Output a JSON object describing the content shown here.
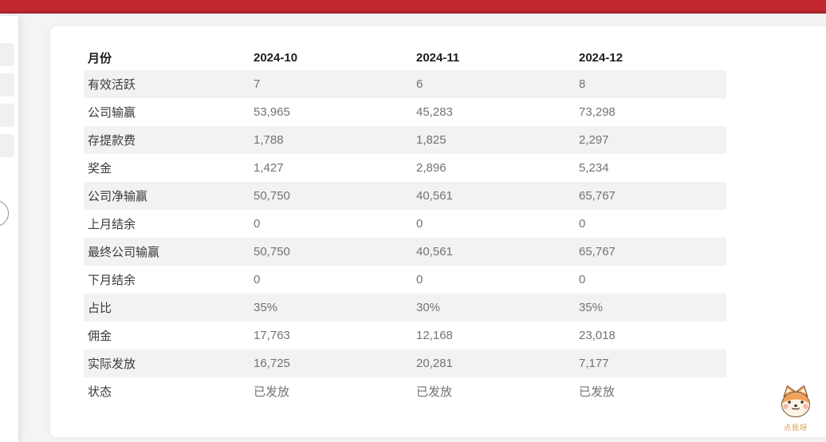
{
  "topbar": {
    "color": "#c2272f"
  },
  "sidebar": {
    "collapse_button": "toggle"
  },
  "table": {
    "header": {
      "label": "月份",
      "columns": [
        "2024-10",
        "2024-11",
        "2024-12"
      ]
    },
    "rows": [
      {
        "label": "有效活跃",
        "values": [
          "7",
          "6",
          "8"
        ]
      },
      {
        "label": "公司输赢",
        "values": [
          "53,965",
          "45,283",
          "73,298"
        ]
      },
      {
        "label": "存提款费",
        "values": [
          "1,788",
          "1,825",
          "2,297"
        ]
      },
      {
        "label": "奖金",
        "values": [
          "1,427",
          "2,896",
          "5,234"
        ]
      },
      {
        "label": "公司净输赢",
        "values": [
          "50,750",
          "40,561",
          "65,767"
        ]
      },
      {
        "label": "上月结余",
        "values": [
          "0",
          "0",
          "0"
        ]
      },
      {
        "label": "最终公司输赢",
        "values": [
          "50,750",
          "40,561",
          "65,767"
        ]
      },
      {
        "label": "下月结余",
        "values": [
          "0",
          "0",
          "0"
        ]
      },
      {
        "label": "占比",
        "values": [
          "35%",
          "30%",
          "35%"
        ]
      },
      {
        "label": "佣金",
        "values": [
          "17,763",
          "12,168",
          "23,018"
        ]
      },
      {
        "label": "实际发放",
        "values": [
          "16,725",
          "20,281",
          "7,177"
        ]
      },
      {
        "label": "状态",
        "values": [
          "已发放",
          "已发放",
          "已发放"
        ]
      }
    ]
  },
  "mascot": {
    "caption": "点我呀"
  }
}
